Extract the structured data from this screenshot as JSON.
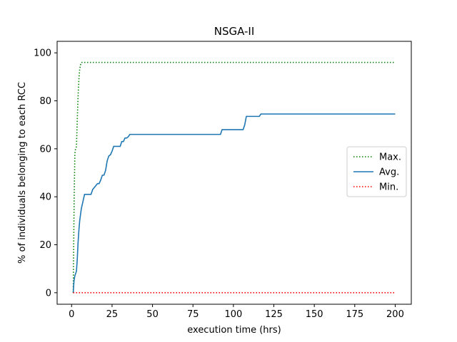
{
  "chart_data": {
    "type": "line",
    "title": "NSGA-II",
    "xlabel": "execution time (hrs)",
    "ylabel": "% of individuals belonging to each RCC",
    "xlim": [
      -8.95,
      209.95
    ],
    "ylim": [
      -4.8,
      104.8
    ],
    "xticks": [
      0,
      25,
      50,
      75,
      100,
      125,
      150,
      175,
      200
    ],
    "yticks": [
      0,
      20,
      40,
      60,
      80,
      100
    ],
    "grid": false,
    "legend_position": "center-right",
    "series": [
      {
        "name": "Max.",
        "style": "dotted",
        "color": "#008000",
        "x": [
          1,
          1.3,
          1.6,
          2,
          2.5,
          3,
          3.5,
          4,
          4.5,
          5,
          5.5,
          6,
          200
        ],
        "y": [
          0,
          20,
          40,
          58,
          60,
          61,
          72,
          82,
          89,
          93,
          95,
          96,
          96
        ]
      },
      {
        "name": "Avg.",
        "style": "solid",
        "color": "#1f77b4",
        "x": [
          1,
          1.5,
          2,
          2.5,
          3,
          3.5,
          4,
          4.5,
          5,
          6,
          7,
          8,
          9,
          12,
          13,
          16,
          17,
          18,
          19,
          20,
          21,
          22,
          23,
          24,
          25,
          26,
          27,
          28,
          30,
          31,
          32,
          33,
          34,
          35,
          36,
          37,
          92,
          93,
          106,
          107,
          108,
          113,
          116,
          117,
          118,
          200
        ],
        "y": [
          0,
          5,
          7,
          8,
          9,
          14,
          21,
          26,
          30,
          35,
          38,
          41,
          41,
          41,
          43,
          45.5,
          45.5,
          47,
          49,
          49,
          51,
          55,
          57,
          57.5,
          59,
          61,
          61,
          61,
          61,
          63,
          63,
          64.5,
          64.5,
          65,
          66,
          66,
          66,
          68,
          68,
          70,
          73.5,
          73.5,
          73.5,
          74.5,
          74.5,
          74.5
        ]
      },
      {
        "name": "Min.",
        "style": "dotted",
        "color": "#ff0000",
        "x": [
          1,
          200
        ],
        "y": [
          0,
          0
        ]
      }
    ]
  }
}
